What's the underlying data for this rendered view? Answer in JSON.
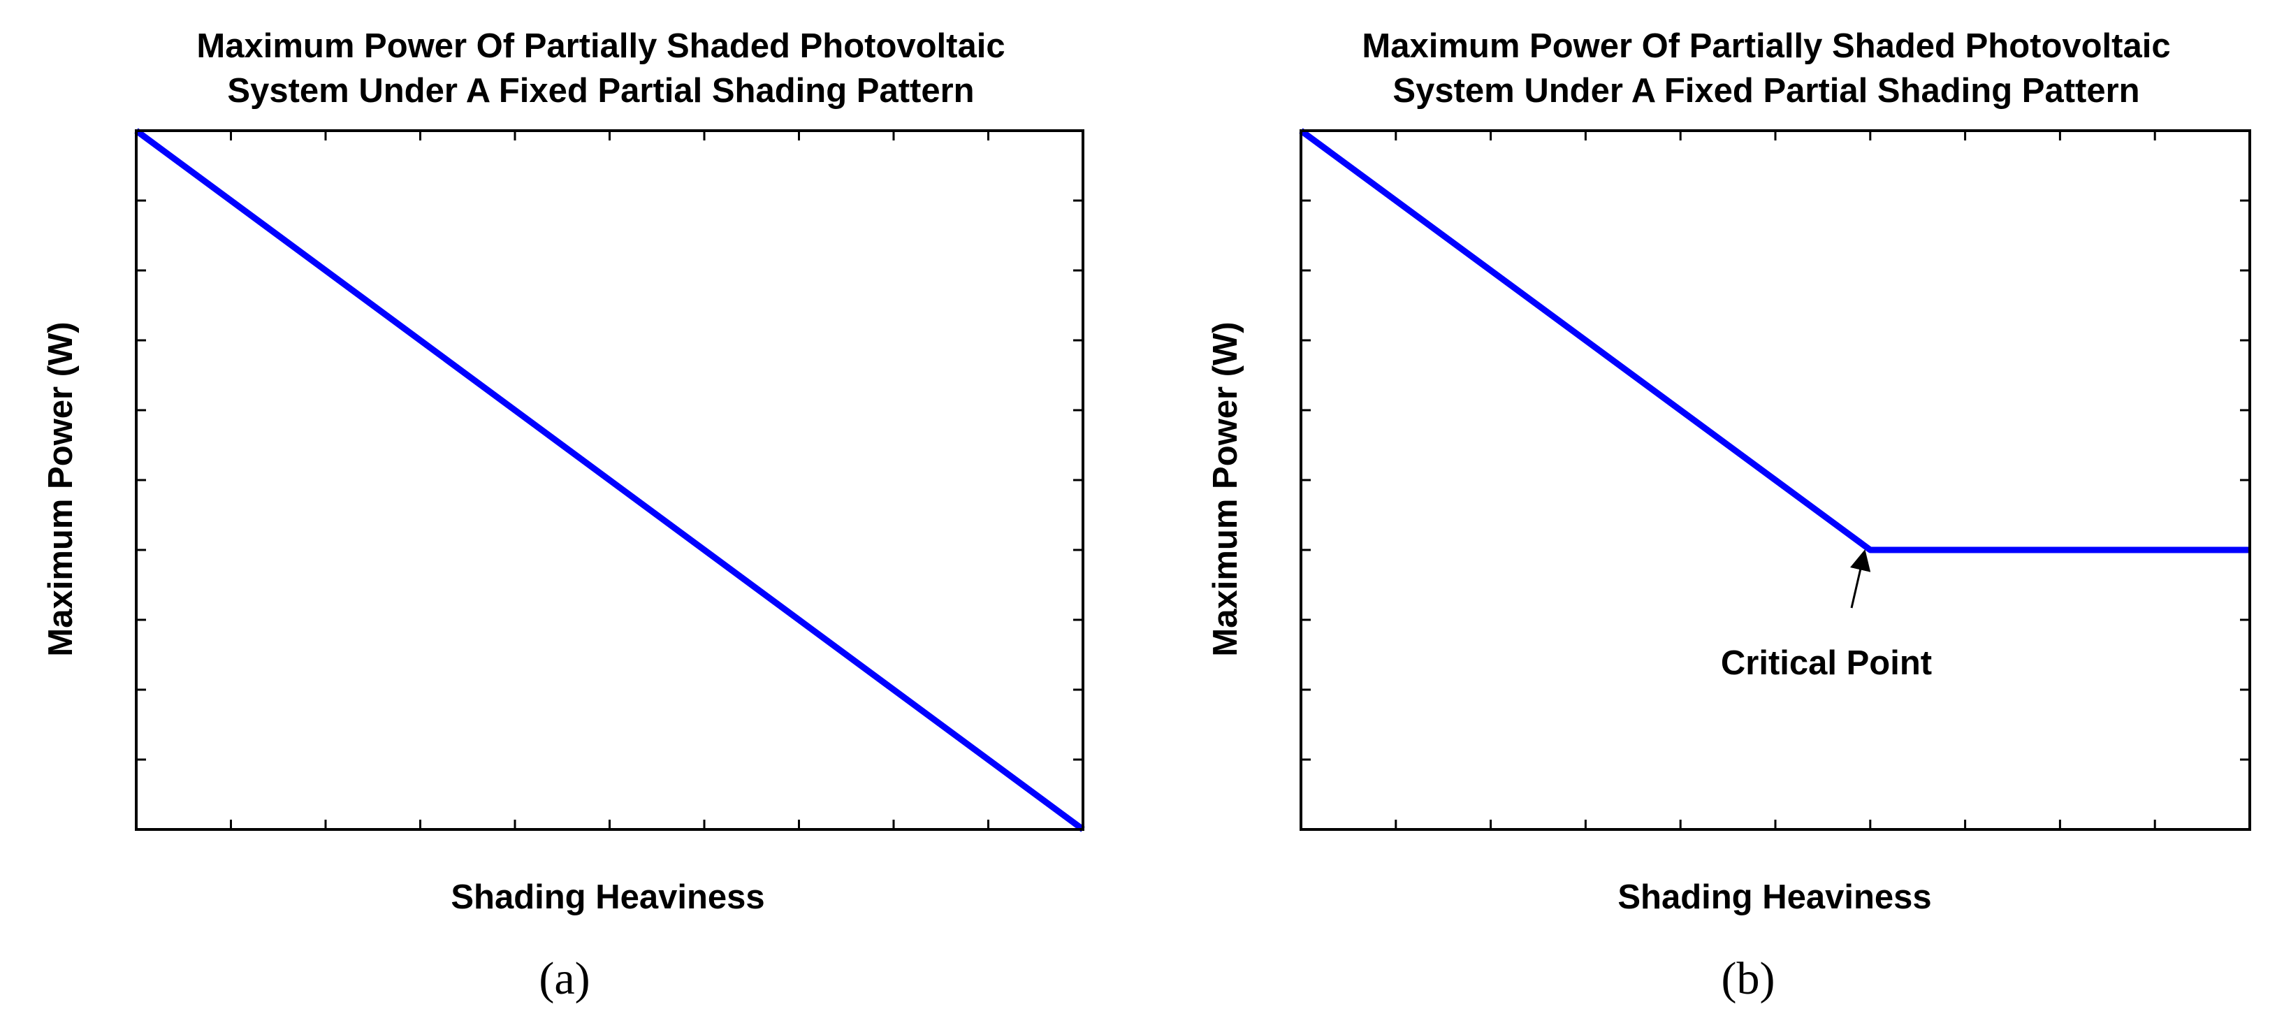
{
  "chart_data": [
    {
      "type": "line",
      "panel_label": "(a)",
      "title": [
        "Maximum Power Of Partially Shaded Photovoltaic",
        "System Under A Fixed Partial Shading Pattern"
      ],
      "xlabel": "Shading Heaviness",
      "ylabel": "Maximum Power (W)",
      "xlim": [
        0,
        10
      ],
      "ylim": [
        0,
        10
      ],
      "x_ticks": 10,
      "y_ticks": 10,
      "series": [
        {
          "name": "Maximum Power",
          "color": "#0000ff",
          "x": [
            0,
            10
          ],
          "y": [
            10,
            0
          ]
        }
      ]
    },
    {
      "type": "line",
      "panel_label": "(b)",
      "title": [
        "Maximum Power Of Partially Shaded Photovoltaic",
        "System Under A Fixed Partial Shading Pattern"
      ],
      "xlabel": "Shading Heaviness",
      "ylabel": "Maximum Power (W)",
      "xlim": [
        0,
        10
      ],
      "ylim": [
        0,
        10
      ],
      "x_ticks": 10,
      "y_ticks": 10,
      "series": [
        {
          "name": "Maximum Power",
          "color": "#0000ff",
          "x": [
            0,
            6,
            10
          ],
          "y": [
            10,
            4,
            4
          ]
        }
      ],
      "annotations": [
        {
          "text": "Critical Point",
          "x": 6,
          "y": 4,
          "arrow": true
        }
      ]
    }
  ]
}
